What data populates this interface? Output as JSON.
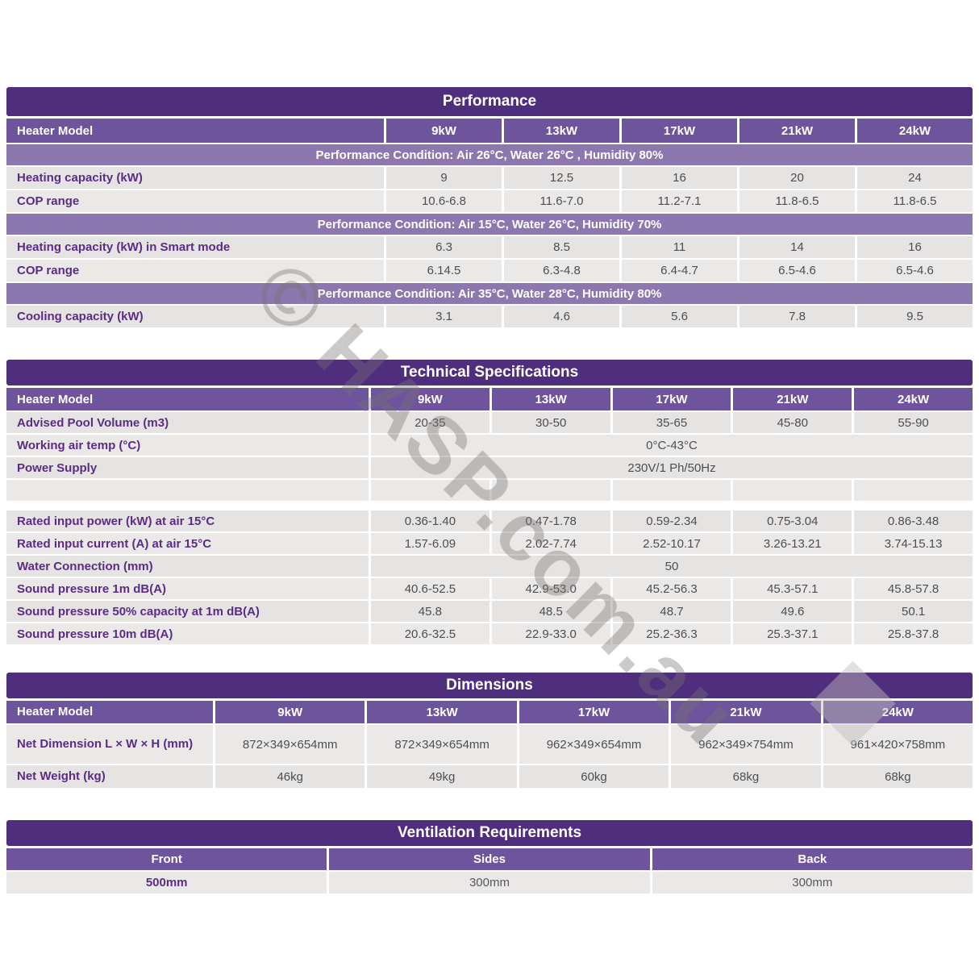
{
  "watermark": {
    "text": "© HASP.com.au",
    "color": "#767472"
  },
  "colors": {
    "title_bar": "#502e7e",
    "header_row": "#6d549c",
    "condition_band": "#8c77ae",
    "label_text": "#5b2c87",
    "value_text": "#4e4e50",
    "row_a": "#e6e4e2",
    "row_b": "#ebe9e7"
  },
  "models": [
    "9kW",
    "13kW",
    "17kW",
    "21kW",
    "24kW"
  ],
  "performance": {
    "title": "Performance",
    "header_label": "Heater Model",
    "sections": [
      {
        "condition": "Performance Condition: Air 26°C, Water 26°C , Humidity 80%",
        "rows": [
          {
            "label": "Heating capacity (kW)",
            "values": [
              "9",
              "12.5",
              "16",
              "20",
              "24"
            ]
          },
          {
            "label": "COP range",
            "values": [
              "10.6-6.8",
              "11.6-7.0",
              "11.2-7.1",
              "11.8-6.5",
              "11.8-6.5"
            ]
          }
        ]
      },
      {
        "condition": "Performance Condition: Air 15°C, Water 26°C, Humidity 70%",
        "rows": [
          {
            "label": "Heating capacity (kW) in Smart mode",
            "values": [
              "6.3",
              "8.5",
              "11",
              "14",
              "16"
            ]
          },
          {
            "label": "COP range",
            "values": [
              "6.14.5",
              "6.3-4.8",
              "6.4-4.7",
              "6.5-4.6",
              "6.5-4.6"
            ]
          }
        ]
      },
      {
        "condition": "Performance Condition: Air 35°C, Water 28°C, Humidity 80%",
        "rows": [
          {
            "label": "Cooling capacity (kW)",
            "values": [
              "3.1",
              "4.6",
              "5.6",
              "7.8",
              "9.5"
            ]
          }
        ]
      }
    ]
  },
  "technical": {
    "title": "Technical Specifications",
    "header_label": "Heater Model",
    "rows": [
      {
        "label": "Advised Pool Volume (m3)",
        "values": [
          "20-35",
          "30-50",
          "35-65",
          "45-80",
          "55-90"
        ]
      },
      {
        "label": "Working air temp (°C)",
        "span": "0°C-43°C"
      },
      {
        "label": "Power Supply",
        "span": "230V/1 Ph/50Hz"
      },
      {
        "label": "",
        "values": [
          "",
          "",
          "",
          "",
          ""
        ]
      },
      {
        "label": "Rated input power (kW) at air 15°C",
        "values": [
          "0.36-1.40",
          "0.47-1.78",
          "0.59-2.34",
          "0.75-3.04",
          "0.86-3.48"
        ]
      },
      {
        "label": "Rated input current (A) at air 15°C",
        "values": [
          "1.57-6.09",
          "2.02-7.74",
          "2.52-10.17",
          "3.26-13.21",
          "3.74-15.13"
        ]
      },
      {
        "label": "Water Connection (mm)",
        "span": "50"
      },
      {
        "label": "Sound pressure 1m dB(A)",
        "values": [
          "40.6-52.5",
          "42.9-53.0",
          "45.2-56.3",
          "45.3-57.1",
          "45.8-57.8"
        ]
      },
      {
        "label": "Sound pressure 50% capacity at 1m dB(A)",
        "values": [
          "45.8",
          "48.5",
          "48.7",
          "49.6",
          "50.1"
        ]
      },
      {
        "label": "Sound pressure 10m dB(A)",
        "values": [
          "20.6-32.5",
          "22.9-33.0",
          "25.2-36.3",
          "25.3-37.1",
          "25.8-37.8"
        ]
      }
    ]
  },
  "dimensions": {
    "title": "Dimensions",
    "header_label": "Heater Model",
    "rows": [
      {
        "label": "Net Dimension L × W × H (mm)",
        "values": [
          "872×349×654mm",
          "872×349×654mm",
          "962×349×654mm",
          "962×349×754mm",
          "961×420×758mm"
        ]
      },
      {
        "label": "Net Weight (kg)",
        "values": [
          "46kg",
          "49kg",
          "60kg",
          "68kg",
          "68kg"
        ]
      }
    ]
  },
  "ventilation": {
    "title": "Ventilation Requirements",
    "columns": [
      "Front",
      "Sides",
      "Back"
    ],
    "values": [
      "500mm",
      "300mm",
      "300mm"
    ]
  }
}
